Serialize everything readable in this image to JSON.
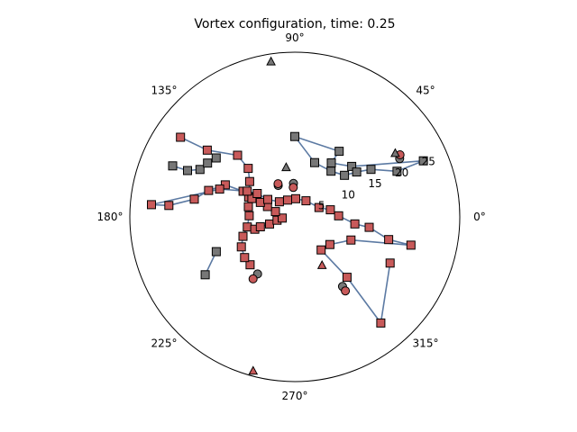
{
  "chart_data": {
    "type": "scatter",
    "projection": "polar",
    "title": "Vortex configuration, time: 0.25",
    "angle_ticks": [
      "0°",
      "45°",
      "90°",
      "135°",
      "180°",
      "225°",
      "270°",
      "315°"
    ],
    "angle_tick_degrees": [
      0,
      45,
      90,
      135,
      180,
      225,
      270,
      315
    ],
    "radial_ticks": [
      "5",
      "10",
      "15",
      "20",
      "25"
    ],
    "radial_tick_values": [
      5,
      10,
      15,
      20,
      25
    ],
    "radial_label_angle_deg": 22.5,
    "rlim": [
      0,
      28.5
    ],
    "grid": false,
    "colors": {
      "gray": "#777777",
      "red": "#c85a5a",
      "line": "#5c7aa3",
      "edge": "#000000"
    },
    "lines": [
      [
        [
          24.23,
          23.6
        ],
        [
          13.15,
          41.6
        ],
        [
          11.27,
          56.0
        ],
        [
          13.7,
          56.0
        ],
        [
          13.91,
          90.0
        ],
        [
          10.0,
          70.0
        ],
        [
          10.09,
          51.7
        ],
        [
          11.2,
          40.0
        ],
        [
          13.21,
          36.0
        ],
        [
          15.51,
          32.0
        ],
        [
          19.34,
          24.1
        ],
        [
          24.23,
          23.6
        ]
      ],
      [
        [
          22.87,
          157.3
        ],
        [
          20.2,
          156.6
        ],
        [
          18.33,
          153.4
        ],
        [
          17.71,
          148.3
        ],
        [
          16.98,
          143.1
        ]
      ],
      [
        [
          11.32,
          227.0
        ],
        [
          11.17,
          219.1
        ],
        [
          10.59,
          209.3
        ],
        [
          9.56,
          200.6
        ],
        [
          8.39,
          192.0
        ],
        [
          7.88,
          178.5
        ],
        [
          8.21,
          167.6
        ],
        [
          8.68,
          156.6
        ],
        [
          9.91,
          141.9
        ],
        [
          11.63,
          133.8
        ],
        [
          14.55,
          132.8
        ],
        [
          19.03,
          142.6
        ],
        [
          24.08,
          145.1
        ]
      ],
      [
        [
          7.23,
          197.1
        ],
        [
          6.19,
          196.0
        ],
        [
          4.53,
          195.7
        ],
        [
          3.12,
          190.7
        ],
        [
          2.19,
          185.5
        ],
        [
          3.48,
          164.6
        ],
        [
          5.04,
          159.2
        ],
        [
          6.46,
          157.2
        ],
        [
          8.06,
          156.8
        ],
        [
          9.98,
          153.6
        ],
        [
          13.23,
          155.2
        ],
        [
          15.58,
          162.9
        ],
        [
          17.63,
          170.0
        ],
        [
          21.85,
          174.8
        ],
        [
          24.85,
          175.1
        ],
        [
          13.85,
          159.7
        ],
        [
          9.35,
          151.6
        ],
        [
          7.65,
          148.0
        ],
        [
          5.57,
          147.1
        ],
        [
          3.73,
          135.5
        ],
        [
          3.17,
          113.0
        ],
        [
          3.15,
          87.2
        ],
        [
          3.39,
          55.2
        ],
        [
          4.48,
          21.1
        ],
        [
          6.26,
          11.4
        ],
        [
          7.57,
          1.4
        ],
        [
          10.45,
          353.3
        ],
        [
          12.97,
          352.0
        ],
        [
          16.68,
          346.4
        ],
        [
          20.65,
          346.3
        ],
        [
          10.49,
          337.6
        ],
        [
          7.71,
          321.7
        ],
        [
          7.31,
          308.5
        ],
        [
          13.8,
          310.8
        ],
        [
          23.62,
          309.0
        ],
        [
          18.3,
          334.1
        ]
      ],
      [
        [
          14.83,
          203.9
        ],
        [
          18.43,
          212.9
        ]
      ]
    ],
    "series": [
      {
        "name": "",
        "marker": "square",
        "color": "gray",
        "points": [
          [
            24.23,
            23.6
          ],
          [
            13.15,
            41.6
          ],
          [
            11.27,
            56.0
          ],
          [
            13.7,
            56.0
          ],
          [
            13.91,
            90.0
          ],
          [
            10.0,
            70.0
          ],
          [
            10.09,
            51.7
          ],
          [
            11.2,
            40.0
          ],
          [
            13.21,
            36.0
          ],
          [
            15.51,
            32.0
          ],
          [
            19.34,
            24.1
          ],
          [
            22.87,
            157.3
          ],
          [
            20.2,
            156.6
          ],
          [
            18.33,
            153.4
          ],
          [
            17.71,
            148.3
          ],
          [
            16.98,
            143.1
          ],
          [
            14.83,
            203.9
          ],
          [
            18.43,
            212.9
          ]
        ]
      },
      {
        "name": "",
        "marker": "square",
        "color": "red",
        "points": [
          [
            11.32,
            227.0
          ],
          [
            11.17,
            219.1
          ],
          [
            10.59,
            209.3
          ],
          [
            9.56,
            200.6
          ],
          [
            8.39,
            192.0
          ],
          [
            7.88,
            178.5
          ],
          [
            8.21,
            167.6
          ],
          [
            8.68,
            156.6
          ],
          [
            9.91,
            141.9
          ],
          [
            11.63,
            133.8
          ],
          [
            14.55,
            132.8
          ],
          [
            19.03,
            142.6
          ],
          [
            24.08,
            145.1
          ],
          [
            7.23,
            197.1
          ],
          [
            6.19,
            196.0
          ],
          [
            4.53,
            195.7
          ],
          [
            3.12,
            190.7
          ],
          [
            2.19,
            185.5
          ],
          [
            3.48,
            164.6
          ],
          [
            5.04,
            159.2
          ],
          [
            6.46,
            157.2
          ],
          [
            8.06,
            156.8
          ],
          [
            9.98,
            153.6
          ],
          [
            13.23,
            155.2
          ],
          [
            15.58,
            162.9
          ],
          [
            17.63,
            170.0
          ],
          [
            21.85,
            174.8
          ],
          [
            24.85,
            175.1
          ],
          [
            13.85,
            159.7
          ],
          [
            9.35,
            151.6
          ],
          [
            7.65,
            148.0
          ],
          [
            5.57,
            147.1
          ],
          [
            3.73,
            135.5
          ],
          [
            3.17,
            113.0
          ],
          [
            3.15,
            87.2
          ],
          [
            3.39,
            55.2
          ],
          [
            4.48,
            21.1
          ],
          [
            6.26,
            11.4
          ],
          [
            7.57,
            1.4
          ],
          [
            10.45,
            353.3
          ],
          [
            12.97,
            352.0
          ],
          [
            16.68,
            346.4
          ],
          [
            20.65,
            346.3
          ],
          [
            10.49,
            337.6
          ],
          [
            7.71,
            321.7
          ],
          [
            7.31,
            308.5
          ],
          [
            13.8,
            310.8
          ],
          [
            23.62,
            309.0
          ],
          [
            18.3,
            334.1
          ]
        ]
      },
      {
        "name": "",
        "marker": "circle",
        "color": "gray",
        "points": [
          [
            6.15,
            117.8
          ],
          [
            20.72,
            29.1
          ],
          [
            5.8,
            92.3
          ],
          [
            11.78,
            236.9
          ],
          [
            14.59,
            304.4
          ]
        ]
      },
      {
        "name": "",
        "marker": "circle",
        "color": "red",
        "points": [
          [
            6.44,
            116.7
          ],
          [
            21.12,
            30.6
          ],
          [
            5.1,
            92.9
          ],
          [
            12.92,
            236.1
          ],
          [
            15.5,
            304.3
          ]
        ]
      },
      {
        "name": "",
        "marker": "triangle",
        "color": "gray",
        "points": [
          [
            27.17,
            98.7
          ],
          [
            20.54,
            32.4
          ],
          [
            8.69,
            99.9
          ]
        ]
      },
      {
        "name": "",
        "marker": "triangle",
        "color": "red",
        "points": [
          [
            27.61,
            254.9
          ],
          [
            9.61,
            299.3
          ]
        ]
      }
    ]
  }
}
